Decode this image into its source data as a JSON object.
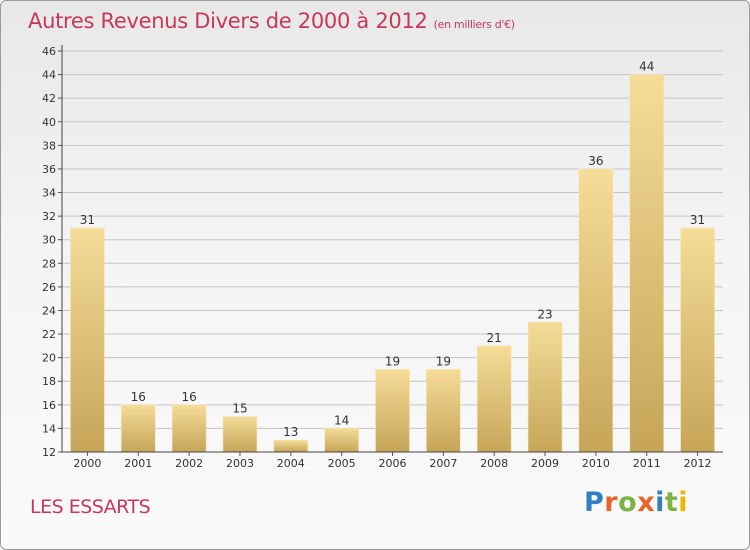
{
  "title": "Autres Revenus Divers de 2000 à 2012",
  "subtitle": "(en milliers d'€)",
  "place": "LES ESSARTS",
  "logo": {
    "text": "Proxiti",
    "letters": [
      {
        "ch": "P",
        "color": "#2f7fc1"
      },
      {
        "ch": "r",
        "color": "#e8632b"
      },
      {
        "ch": "o",
        "color": "#7cb342"
      },
      {
        "ch": "x",
        "color": "#e8632b"
      },
      {
        "ch": "i",
        "color": "#2f7fc1"
      },
      {
        "ch": "t",
        "color": "#7cb342"
      },
      {
        "ch": "i",
        "color": "#f2b400"
      }
    ]
  },
  "colors": {
    "accent": "#c8375a",
    "bar_light": "#f5dc98",
    "bar_dark": "#c6a558",
    "grid": "#c4c4c4"
  },
  "chart_data": {
    "type": "bar",
    "title": "Autres Revenus Divers de 2000 à 2012",
    "subtitle": "(en milliers d'€)",
    "categories": [
      "2000",
      "2001",
      "2002",
      "2003",
      "2004",
      "2005",
      "2006",
      "2007",
      "2008",
      "2009",
      "2010",
      "2011",
      "2012"
    ],
    "values": [
      31,
      16,
      16,
      15,
      13,
      14,
      19,
      19,
      21,
      23,
      36,
      44,
      31
    ],
    "ylim": [
      12,
      46
    ],
    "yticks": [
      12,
      14,
      16,
      18,
      20,
      22,
      24,
      26,
      28,
      30,
      32,
      34,
      36,
      38,
      40,
      42,
      44,
      46
    ],
    "grid": true,
    "data_labels": true
  }
}
